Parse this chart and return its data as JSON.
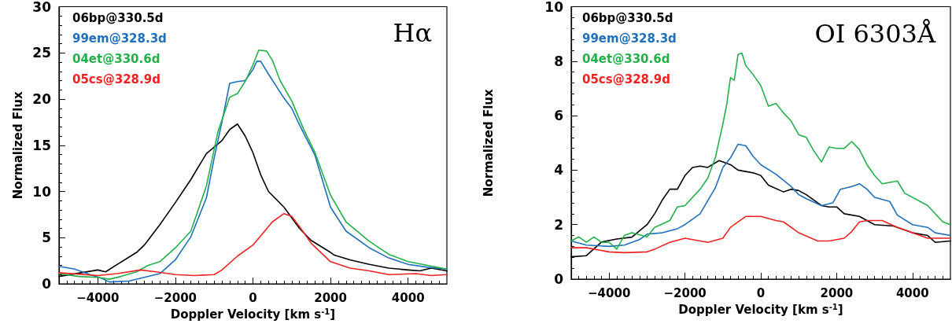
{
  "chart_data": [
    {
      "type": "line",
      "title": "Hα",
      "xlabel": "Doppler Velocity [km s$^{-1}$]",
      "ylabel": "Normalized Flux",
      "xlim": [
        -5000,
        5000
      ],
      "xticks": [
        -4000,
        -2000,
        0,
        2000,
        4000
      ],
      "ylim": [
        0,
        30
      ],
      "yticks": [
        0,
        5,
        10,
        15,
        20,
        25,
        30
      ],
      "legend": "top left",
      "marker": "none",
      "line_style": "solid",
      "grid": false,
      "series": [
        {
          "name": "06bp@330.5d",
          "color": "#000000",
          "x": [
            -5000,
            -4000,
            -3800,
            -3500,
            -3000,
            -2800,
            -2400,
            -2000,
            -1600,
            -1200,
            -800,
            -600,
            -400,
            -200,
            0,
            200,
            400,
            800,
            1200,
            1500,
            2000,
            2100,
            2500,
            3000,
            3500,
            4000,
            4300,
            4600,
            5000
          ],
          "values": [
            0.8,
            1.5,
            1.3,
            2.1,
            3.4,
            4.2,
            6.4,
            8.8,
            11.3,
            14.1,
            15.5,
            16.7,
            17.3,
            16.0,
            14.2,
            11.8,
            10.0,
            8.3,
            6.0,
            4.7,
            3.4,
            3.1,
            2.6,
            2.1,
            1.7,
            1.5,
            1.4,
            1.7,
            1.4
          ]
        },
        {
          "name": "99em@328.3d",
          "color": "#1f6fba",
          "x": [
            -5000,
            -4600,
            -4200,
            -3900,
            -3700,
            -3200,
            -2800,
            -2400,
            -2000,
            -1600,
            -1200,
            -1000,
            -800,
            -600,
            -400,
            -200,
            0,
            100,
            200,
            400,
            800,
            1000,
            1200,
            1600,
            2000,
            2400,
            3000,
            3500,
            4000,
            4500,
            5000
          ],
          "values": [
            1.9,
            1.6,
            1.0,
            0.6,
            0.2,
            0.3,
            0.7,
            1.1,
            2.6,
            5.1,
            9.3,
            13.6,
            17.5,
            21.7,
            21.9,
            22.0,
            23.2,
            24.1,
            24.1,
            22.7,
            20.1,
            19.0,
            17.2,
            13.9,
            8.3,
            5.7,
            3.9,
            2.8,
            2.1,
            1.8,
            1.6
          ]
        },
        {
          "name": "04et@330.6d",
          "color": "#22b04b",
          "x": [
            -5000,
            -4500,
            -4000,
            -3700,
            -3400,
            -3000,
            -2700,
            -2400,
            -2000,
            -1600,
            -1200,
            -900,
            -600,
            -400,
            -200,
            0,
            150,
            350,
            500,
            700,
            1000,
            1300,
            1600,
            2000,
            2400,
            3000,
            3500,
            4000,
            4500,
            5000
          ],
          "values": [
            1.1,
            0.8,
            0.7,
            0.5,
            0.8,
            1.3,
            2.0,
            2.4,
            3.9,
            5.7,
            10.6,
            16.5,
            20.2,
            20.6,
            21.9,
            23.7,
            25.3,
            25.2,
            24.2,
            22.0,
            19.8,
            16.8,
            14.2,
            9.6,
            6.7,
            4.6,
            3.2,
            2.4,
            2.0,
            1.6
          ]
        },
        {
          "name": "05cs@328.9d",
          "color": "#ee2222",
          "x": [
            -5000,
            -4000,
            -3500,
            -2900,
            -2500,
            -2000,
            -1500,
            -1000,
            -800,
            -400,
            0,
            200,
            500,
            800,
            1000,
            1200,
            1500,
            2000,
            2500,
            3000,
            3500,
            4200,
            4600,
            5000
          ],
          "values": [
            1.2,
            0.9,
            1.1,
            1.5,
            1.3,
            1.0,
            0.9,
            1.0,
            1.5,
            3.0,
            4.2,
            5.2,
            6.7,
            7.6,
            7.3,
            6.2,
            4.4,
            2.4,
            1.7,
            1.4,
            1.0,
            1.1,
            0.9,
            1.0
          ]
        }
      ]
    },
    {
      "type": "line",
      "title": "OI 6303Å",
      "xlabel": "Doppler Velocity [km s$^{-1}$]",
      "ylabel": "Normalized Flux",
      "xlim": [
        -5000,
        5000
      ],
      "xticks": [
        -4000,
        -2000,
        0,
        2000,
        4000
      ],
      "ylim": [
        0,
        10
      ],
      "yticks": [
        0,
        2,
        4,
        6,
        8,
        10
      ],
      "legend": "top left",
      "marker": "none",
      "line_style": "solid",
      "grid": false,
      "series": [
        {
          "name": "06bp@330.5d",
          "color": "#000000",
          "x": [
            -5000,
            -4600,
            -4200,
            -3800,
            -3400,
            -3000,
            -2800,
            -2600,
            -2400,
            -2200,
            -2000,
            -1800,
            -1600,
            -1400,
            -1100,
            -800,
            -600,
            -200,
            0,
            200,
            600,
            800,
            1000,
            1200,
            1600,
            1800,
            2000,
            2200,
            2600,
            2800,
            3000,
            3500,
            4000,
            4400,
            4600,
            5000
          ],
          "values": [
            0.82,
            0.86,
            1.36,
            1.47,
            1.54,
            2.0,
            2.4,
            2.9,
            3.3,
            3.3,
            3.8,
            4.1,
            4.15,
            4.1,
            4.35,
            4.2,
            4.0,
            3.9,
            3.8,
            3.45,
            3.2,
            3.3,
            3.25,
            3.1,
            2.7,
            2.65,
            2.65,
            2.4,
            2.3,
            2.15,
            2.0,
            1.95,
            1.7,
            1.6,
            1.35,
            1.4
          ]
        },
        {
          "name": "99em@328.3d",
          "color": "#1f6fba",
          "x": [
            -5000,
            -4600,
            -4000,
            -3600,
            -3200,
            -3000,
            -2600,
            -2200,
            -2000,
            -1600,
            -1200,
            -1000,
            -800,
            -600,
            -400,
            -200,
            0,
            400,
            800,
            1000,
            1200,
            1600,
            1900,
            2100,
            2400,
            2600,
            2800,
            3000,
            3400,
            3600,
            4000,
            4400,
            4600,
            5000
          ],
          "values": [
            1.4,
            1.25,
            1.2,
            1.25,
            1.45,
            1.65,
            1.7,
            1.85,
            2.0,
            2.4,
            3.35,
            4.1,
            4.45,
            4.95,
            4.9,
            4.5,
            4.2,
            3.85,
            3.4,
            3.1,
            2.95,
            2.7,
            2.8,
            3.3,
            3.4,
            3.5,
            3.3,
            3.0,
            2.85,
            2.35,
            2.0,
            1.9,
            1.7,
            1.6
          ]
        },
        {
          "name": "04et@330.6d",
          "color": "#22b04b",
          "x": [
            -5000,
            -4800,
            -4600,
            -4400,
            -4200,
            -4000,
            -3800,
            -3600,
            -3400,
            -3000,
            -2800,
            -2400,
            -2200,
            -2000,
            -1800,
            -1600,
            -1400,
            -1200,
            -1000,
            -900,
            -800,
            -700,
            -600,
            -500,
            -400,
            -200,
            0,
            200,
            400,
            600,
            800,
            1000,
            1200,
            1400,
            1600,
            1800,
            2000,
            2200,
            2400,
            2600,
            2800,
            3000,
            3200,
            3600,
            3800,
            4200,
            4400,
            4800,
            5000
          ],
          "values": [
            1.4,
            1.55,
            1.35,
            1.55,
            1.35,
            1.35,
            1.1,
            1.6,
            1.7,
            1.55,
            1.9,
            2.15,
            2.65,
            2.7,
            3.0,
            3.3,
            3.7,
            4.45,
            5.7,
            6.4,
            7.4,
            7.3,
            8.25,
            8.3,
            7.85,
            7.5,
            7.1,
            6.35,
            6.45,
            6.1,
            5.8,
            5.3,
            5.2,
            4.7,
            4.3,
            4.85,
            4.8,
            4.8,
            5.05,
            4.75,
            4.2,
            3.8,
            3.5,
            3.6,
            3.15,
            2.85,
            2.7,
            2.1,
            2.0
          ]
        },
        {
          "name": "05cs@328.9d",
          "color": "#ee2222",
          "x": [
            -5000,
            -4600,
            -4000,
            -3600,
            -3000,
            -2800,
            -2400,
            -2000,
            -1600,
            -1400,
            -1000,
            -800,
            -400,
            0,
            400,
            600,
            1000,
            1500,
            1800,
            2200,
            2400,
            2600,
            2800,
            3200,
            3600,
            4000,
            4400,
            5000
          ],
          "values": [
            1.15,
            1.15,
            1.0,
            0.97,
            1.0,
            1.1,
            1.35,
            1.5,
            1.4,
            1.35,
            1.5,
            1.9,
            2.3,
            2.3,
            2.15,
            2.1,
            1.7,
            1.4,
            1.4,
            1.5,
            1.75,
            2.1,
            2.15,
            2.15,
            1.9,
            1.7,
            1.5,
            1.5
          ]
        }
      ]
    }
  ]
}
